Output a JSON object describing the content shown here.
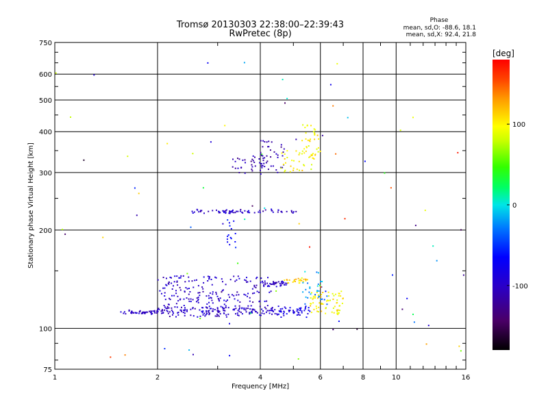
{
  "chart_data": {
    "type": "scatter",
    "title": "Tromsø 20130303 22:38:00–22:39:43",
    "subtitle": "RwPretec (8p)",
    "xlabel": "Frequency [MHz]",
    "ylabel": "Stationary phase Virtual Height [km]",
    "x_scale": "log",
    "y_scale": "log",
    "xlim": [
      1,
      16
    ],
    "ylim": [
      75,
      750
    ],
    "x_ticks": [
      1,
      2,
      4,
      6,
      8,
      10,
      16
    ],
    "y_ticks": [
      75,
      100,
      200,
      300,
      400,
      500,
      600,
      750
    ],
    "grid": true,
    "stats": {
      "title": "Phase",
      "line_o": "mean, sd,O: -88.6, 18.1",
      "line_x": "mean, sd,X:  92.4, 21.8"
    },
    "colorbar": {
      "label": "[deg]",
      "range": [
        -180,
        180
      ],
      "ticks": [
        100,
        0,
        -100
      ],
      "colormap": "rainbow (black → purple → blue → cyan → green → yellow → orange → red)"
    },
    "series": [
      {
        "clusters": [
          {
            "freq_range": [
              1.55,
              2.0
            ],
            "height": 112,
            "height_spread": 2,
            "phase": -100,
            "count": 50
          },
          {
            "freq_range": [
              2.0,
              4.5
            ],
            "height": 113,
            "height_spread": 5,
            "phase": -100,
            "count": 160
          },
          {
            "freq_range": [
              2.0,
              3.0
            ],
            "height_range": [
              115,
              145
            ],
            "phase": -100,
            "count": 120
          },
          {
            "freq_range": [
              4.5,
              5.6
            ],
            "height": 113,
            "height_spread": 5,
            "phase": -80,
            "count": 50
          },
          {
            "freq_range": [
              5.6,
              7.0
            ],
            "height_range": [
              110,
              130
            ],
            "phase": 100,
            "count": 70
          },
          {
            "freq_range": [
              3.0,
              4.3
            ],
            "height_range": [
              115,
              145
            ],
            "phase": -100,
            "count": 70
          },
          {
            "freq_range": [
              4.0,
              4.8
            ],
            "height": 137,
            "height_spread": 3,
            "phase": -100,
            "count": 40
          },
          {
            "freq_range": [
              4.7,
              5.5
            ],
            "height": 140,
            "height_spread": 3,
            "phase": 110,
            "count": 25
          },
          {
            "freq_range": [
              5.3,
              6.3
            ],
            "height_range": [
              115,
              150
            ],
            "phase": -20,
            "count": 30
          },
          {
            "freq_range": [
              2.5,
              5.2
            ],
            "height": 228,
            "height_spread": 4,
            "phase": -100,
            "count": 70
          },
          {
            "freq_range": [
              3.2,
              3.4
            ],
            "height_range": [
              175,
              215
            ],
            "phase": -60,
            "count": 15
          },
          {
            "freq_range": [
              3.3,
              4.2
            ],
            "height_range": [
              295,
              340
            ],
            "phase": -110,
            "count": 35
          },
          {
            "freq_range": [
              4.0,
              4.7
            ],
            "height_range": [
              300,
              380
            ],
            "phase": -110,
            "count": 40
          },
          {
            "freq_range": [
              4.6,
              5.8
            ],
            "height_range": [
              300,
              350
            ],
            "phase": 100,
            "count": 35
          },
          {
            "freq_range": [
              5.3,
              6.0
            ],
            "height_range": [
              330,
              420
            ],
            "phase": 100,
            "count": 35
          },
          {
            "freq_range": [
              1.0,
              16.0
            ],
            "height_range": [
              78,
              700
            ],
            "phase": -180,
            "phase_max": 180,
            "count": 80
          }
        ]
      }
    ]
  }
}
